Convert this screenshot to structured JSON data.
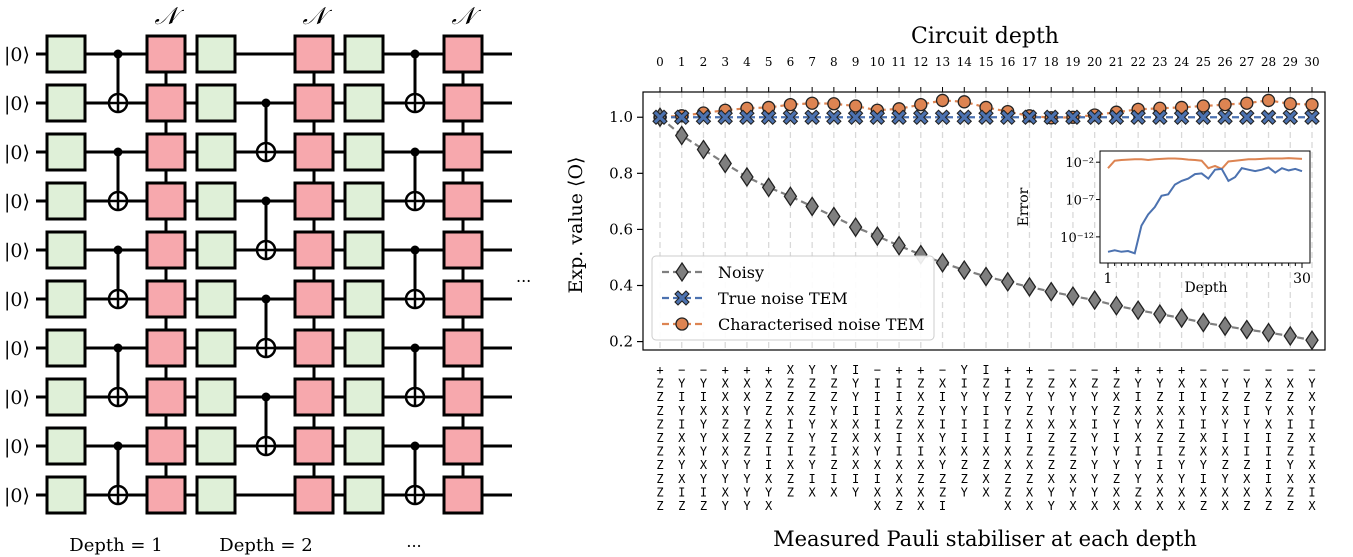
{
  "circuit": {
    "qubit_labels": [
      "|0⟩",
      "|0⟩",
      "|0⟩",
      "|0⟩",
      "|0⟩",
      "|0⟩",
      "|0⟩",
      "|0⟩",
      "|0⟩",
      "|0⟩"
    ],
    "noise_labels": [
      "𝒩",
      "𝒩",
      "𝒩"
    ],
    "depth_labels": [
      "Depth = 1",
      "Depth = 2",
      "..."
    ],
    "ellipsis": "...",
    "colors": {
      "single_qubit_gate": "#dff0d8",
      "noise_channel": "#f7a8ad",
      "line": "#000000"
    }
  },
  "chart_data": {
    "type": "line",
    "top_axis_label": "Circuit depth",
    "ylabel": "Exp. value ⟨O⟩",
    "xlabel": "Measured Pauli stabiliser at each depth",
    "ylim": [
      0.17,
      1.09
    ],
    "yticks": [
      0.2,
      0.4,
      0.6,
      0.8,
      1.0
    ],
    "ytick_labels": [
      "0.2",
      "0.4",
      "0.6",
      "0.8",
      "1.0"
    ],
    "x": [
      0,
      1,
      2,
      3,
      4,
      5,
      6,
      7,
      8,
      9,
      10,
      11,
      12,
      13,
      14,
      15,
      16,
      17,
      18,
      19,
      20,
      21,
      22,
      23,
      24,
      25,
      26,
      27,
      28,
      29,
      30
    ],
    "grid_x": true,
    "series": [
      {
        "name": "Noisy",
        "color": "#7f7f7f",
        "marker": "diamond",
        "values": [
          1.0,
          0.935,
          0.885,
          0.835,
          0.787,
          0.75,
          0.718,
          0.682,
          0.646,
          0.608,
          0.576,
          0.542,
          0.51,
          0.481,
          0.455,
          0.432,
          0.413,
          0.395,
          0.378,
          0.362,
          0.348,
          0.328,
          0.312,
          0.298,
          0.284,
          0.268,
          0.255,
          0.243,
          0.232,
          0.22,
          0.205
        ]
      },
      {
        "name": "True noise TEM",
        "color": "#4c72b0",
        "marker": "x",
        "values": [
          1.0,
          1.0,
          1.0,
          1.0,
          1.0,
          1.0,
          1.0,
          1.0,
          1.0,
          1.0,
          1.0,
          1.0,
          1.0,
          1.0,
          1.0,
          1.0,
          1.0,
          1.0,
          1.0,
          1.0,
          1.0,
          1.0,
          1.0,
          1.0,
          1.0,
          1.0,
          1.0,
          1.0,
          1.0,
          1.0,
          1.0
        ]
      },
      {
        "name": "Characterised noise TEM",
        "color": "#dd8452",
        "marker": "circle",
        "values": [
          1.0,
          1.005,
          1.015,
          1.025,
          1.032,
          1.035,
          1.045,
          1.05,
          1.048,
          1.04,
          1.025,
          1.03,
          1.045,
          1.06,
          1.055,
          1.035,
          1.02,
          1.005,
          0.998,
          1.0,
          1.008,
          1.018,
          1.028,
          1.032,
          1.035,
          1.04,
          1.045,
          1.05,
          1.06,
          1.048,
          1.045
        ]
      }
    ],
    "legend_position": "lower-left",
    "stabilisers": [
      "+ZZZZZZZZZZ",
      "−YIYIXXYXIZ",
      "−YIXYYYXYIZ",
      "+XXXZXXYYXY",
      "+XXYZZZYYYY",
      "+XZZXZIIXYX",
      "XZZXIZIXZZ",
      "YZZZYYZYIX",
      "YZZYXZIZIX",
      "IYYIXXXXIY",
      "−IIIIXYXIXX",
      "+IIXZIIXXXZ",
      "+ZXZXXIXZXX",
      "−XIYIYXYZZI",
      "YIYYIIXZZY",
      "IZYIIIXZXX",
      "+IZYZIXXZZX",
      "+ZYZXIZXZXX",
      "−ZYYXZZZXYY",
      "−XYYXZZZXYX",
      "−ZYYIYYYYYX",
      "+ZXZYIYYZXX",
      "+YIXYXIYYZX",
      "+YZXXZIIXXX",
      "+XIXIZZYYXX",
      "−XIYIXXYIXZ",
      "−YZXYIXZYXX",
      "−YZIYIIZXXZ",
      "−XZYXIIIIXZ",
      "−XZXIZZYXZZ",
      "−YXYIXIXXIX"
    ],
    "inset": {
      "type": "line",
      "xlabel": "Depth",
      "ylabel": "Error",
      "x_ticks": [
        "1",
        "30"
      ],
      "y_ticks": [
        "10⁻²",
        "10⁻⁷",
        "10⁻¹²"
      ],
      "yscale": "log",
      "ylim_log10": [
        -15.5,
        -0.5
      ],
      "x": [
        1,
        2,
        3,
        4,
        5,
        6,
        7,
        8,
        9,
        10,
        11,
        12,
        13,
        14,
        15,
        16,
        17,
        18,
        19,
        20,
        21,
        22,
        23,
        24,
        25,
        26,
        27,
        28,
        29,
        30
      ],
      "series": [
        {
          "name": "Characterised noise TEM",
          "color": "#dd8452",
          "log10_values": [
            -2.8,
            -1.8,
            -1.7,
            -1.65,
            -1.6,
            -1.6,
            -1.7,
            -1.6,
            -1.55,
            -1.5,
            -1.5,
            -1.55,
            -1.65,
            -1.7,
            -1.8,
            -2.8,
            -2.5,
            -2.9,
            -1.9,
            -1.8,
            -1.7,
            -1.6,
            -1.6,
            -1.55,
            -1.5,
            -1.5,
            -1.5,
            -1.45,
            -1.5,
            -1.55
          ]
        },
        {
          "name": "True noise TEM",
          "color": "#4c72b0",
          "log10_values": [
            -14.0,
            -13.8,
            -14.0,
            -13.9,
            -14.2,
            -10.5,
            -9.0,
            -8.0,
            -6.5,
            -6.3,
            -5.0,
            -4.5,
            -4.2,
            -3.6,
            -3.5,
            -4.2,
            -3.0,
            -2.9,
            -4.5,
            -4.0,
            -2.8,
            -3.0,
            -3.2,
            -3.0,
            -2.7,
            -3.4,
            -2.8,
            -3.1,
            -2.9,
            -3.2
          ]
        }
      ]
    }
  }
}
